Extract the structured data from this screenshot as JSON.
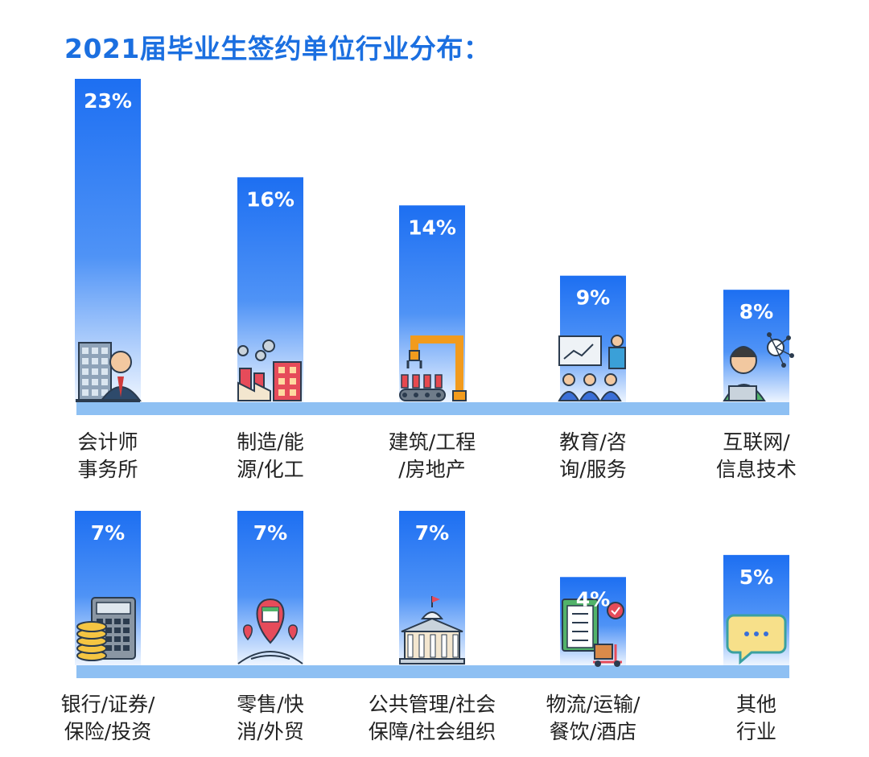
{
  "title": "2021届毕业生签约单位行业分布：",
  "colors": {
    "bar_top": "#1d6ff2",
    "bar_bottom": "#e9f2ff",
    "baseline": "#8ec0f3",
    "title": "#1b6fe0"
  },
  "chart_data": [
    {
      "type": "bar",
      "categories": [
        [
          "会计师",
          "事务所"
        ],
        [
          "制造/能",
          "源/化工"
        ],
        [
          "建筑/工程",
          "/房地产"
        ],
        [
          "教育/咨",
          "询/服务"
        ],
        [
          "互联网/",
          "信息技术"
        ]
      ],
      "values": [
        23,
        16,
        14,
        9,
        8
      ],
      "value_labels": [
        "23%",
        "16%",
        "14%",
        "9%",
        "8%"
      ],
      "icons": [
        "accountant-office-icon",
        "factory-icon",
        "robotic-arm-icon",
        "teacher-presentation-icon",
        "internet-worker-icon"
      ],
      "ylim": [
        0,
        23
      ]
    },
    {
      "type": "bar",
      "categories": [
        [
          "银行/证券/",
          "保险/投资"
        ],
        [
          "零售/快",
          "消/外贸"
        ],
        [
          "公共管理/社会",
          "保障/社会组织"
        ],
        [
          "物流/运输/",
          "餐饮/酒店"
        ],
        [
          "其他",
          "行业"
        ]
      ],
      "values": [
        7,
        7,
        7,
        4,
        5
      ],
      "value_labels": [
        "7%",
        "7%",
        "7%",
        "4%",
        "5%"
      ],
      "icons": [
        "calculator-coins-icon",
        "shop-location-icon",
        "government-building-icon",
        "delivery-checklist-icon",
        "chat-bubble-icon"
      ],
      "ylim": [
        0,
        7
      ]
    }
  ]
}
